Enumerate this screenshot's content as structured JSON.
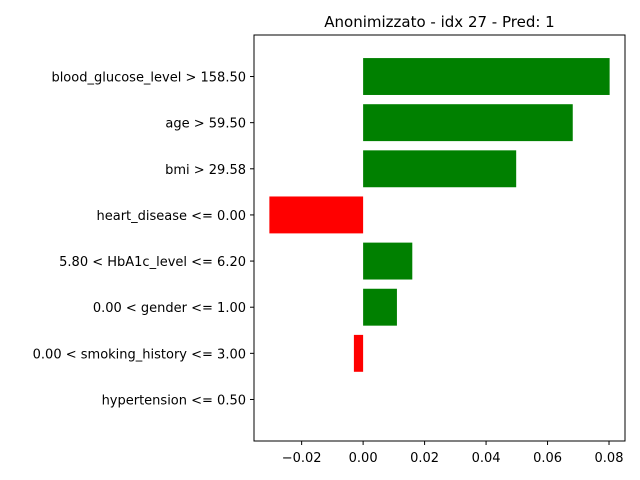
{
  "chart_data": {
    "type": "bar",
    "orientation": "horizontal",
    "title": "Anonimizzato - idx 27 - Pred: 1",
    "categories": [
      "blood_glucose_level > 158.50",
      "age > 59.50",
      "bmi > 29.58",
      "heart_disease <= 0.00",
      "5.80 < HbA1c_level <= 6.20",
      "0.00 < gender <= 1.00",
      "0.00 < smoking_history <= 3.00",
      "hypertension <= 0.50"
    ],
    "values": [
      0.0802,
      0.0682,
      0.0498,
      -0.0305,
      0.016,
      0.011,
      -0.003,
      0.0
    ],
    "colors": {
      "positive": "#008000",
      "negative": "#ff0000"
    },
    "xlabel": "",
    "ylabel": "",
    "xlim": [
      -0.0355,
      0.0852
    ],
    "xticks": [
      -0.02,
      0.0,
      0.02,
      0.04,
      0.06,
      0.08
    ],
    "xtick_labels": [
      "−0.02",
      "0.00",
      "0.02",
      "0.04",
      "0.06",
      "0.08"
    ],
    "grid": false,
    "legend": "none"
  }
}
